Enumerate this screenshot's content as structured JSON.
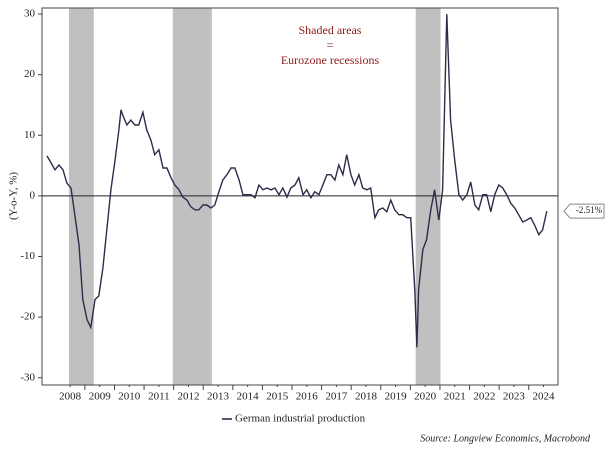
{
  "chart_data": {
    "type": "line",
    "y_label": "(Y-o-Y, %)",
    "annotation": [
      "Shaded areas",
      "=",
      "Eurozone recessions"
    ],
    "source": "Source: Longview Economics, Macrobond",
    "recessions": [
      [
        2008.46,
        2009.3
      ],
      [
        2011.97,
        2013.29
      ],
      [
        2020.18,
        2021.02
      ]
    ],
    "recession_color": "#c0c0c0",
    "xlim": [
      2007.55,
      2024.99
    ],
    "ylim": [
      -31.2,
      31
    ],
    "yticks": [
      -30,
      -20,
      -10,
      0,
      10,
      20,
      30
    ],
    "xticks": [
      {
        "value": 2008.5,
        "label": "2008"
      },
      {
        "value": 2009.5,
        "label": "2009"
      },
      {
        "value": 2010.5,
        "label": "2010"
      },
      {
        "value": 2011.5,
        "label": "2011"
      },
      {
        "value": 2012.5,
        "label": "2012"
      },
      {
        "value": 2013.5,
        "label": "2013"
      },
      {
        "value": 2014.5,
        "label": "2014"
      },
      {
        "value": 2015.5,
        "label": "2015"
      },
      {
        "value": 2016.5,
        "label": "2016"
      },
      {
        "value": 2017.5,
        "label": "2017"
      },
      {
        "value": 2018.5,
        "label": "2018"
      },
      {
        "value": 2019.5,
        "label": "2019"
      },
      {
        "value": 2020.5,
        "label": "2020"
      },
      {
        "value": 2021.5,
        "label": "2021"
      },
      {
        "value": 2022.5,
        "label": "2022"
      },
      {
        "value": 2023.5,
        "label": "2023"
      },
      {
        "value": 2024.5,
        "label": "2024"
      }
    ],
    "x": [
      2007.72,
      2007.85,
      2007.99,
      2008.12,
      2008.26,
      2008.39,
      2008.53,
      2008.66,
      2008.8,
      2008.93,
      2009.07,
      2009.2,
      2009.34,
      2009.47,
      2009.61,
      2009.74,
      2009.88,
      2010.01,
      2010.15,
      2010.22,
      2010.28,
      2010.42,
      2010.55,
      2010.69,
      2010.82,
      2010.96,
      2011.09,
      2011.23,
      2011.36,
      2011.5,
      2011.64,
      2011.77,
      2011.91,
      2012.04,
      2012.18,
      2012.31,
      2012.45,
      2012.58,
      2012.72,
      2012.85,
      2012.99,
      2013.12,
      2013.26,
      2013.39,
      2013.53,
      2013.66,
      2013.8,
      2013.94,
      2014.07,
      2014.21,
      2014.34,
      2014.48,
      2014.61,
      2014.75,
      2014.88,
      2015.02,
      2015.15,
      2015.29,
      2015.42,
      2015.56,
      2015.69,
      2015.83,
      2015.96,
      2016.1,
      2016.23,
      2016.37,
      2016.5,
      2016.64,
      2016.77,
      2016.91,
      2017.04,
      2017.18,
      2017.31,
      2017.45,
      2017.58,
      2017.72,
      2017.85,
      2017.99,
      2018.12,
      2018.26,
      2018.39,
      2018.53,
      2018.66,
      2018.8,
      2018.93,
      2019.07,
      2019.2,
      2019.34,
      2019.47,
      2019.61,
      2019.74,
      2019.88,
      2020.01,
      2020.15,
      2020.22,
      2020.28,
      2020.42,
      2020.55,
      2020.69,
      2020.82,
      2020.96,
      2021.09,
      2021.23,
      2021.36,
      2021.5,
      2021.64,
      2021.77,
      2021.91,
      2022.04,
      2022.18,
      2022.31,
      2022.45,
      2022.58,
      2022.72,
      2022.85,
      2022.99,
      2023.12,
      2023.26,
      2023.39,
      2023.53,
      2023.66,
      2023.8,
      2023.93,
      2024.07,
      2024.2,
      2024.34,
      2024.47,
      2024.61
    ],
    "series": [
      {
        "name": "German industrial production",
        "color": "#2b2d4a",
        "values": [
          6.6,
          5.5,
          4.3,
          5.1,
          4.3,
          2.1,
          1.3,
          -3.1,
          -8.1,
          -17.1,
          -20.4,
          -21.7,
          -17.1,
          -16.5,
          -11.9,
          -5.6,
          1,
          5.6,
          10.9,
          14.2,
          13.3,
          11.7,
          12.5,
          11.7,
          11.7,
          13.8,
          10.9,
          9.2,
          6.8,
          7.6,
          4.6,
          4.6,
          3,
          1.8,
          1,
          -0.2,
          -0.7,
          -1.8,
          -2.3,
          -2.3,
          -1.5,
          -1.5,
          -2,
          -1.5,
          0.7,
          2.6,
          3.5,
          4.6,
          4.6,
          2.6,
          0.2,
          0.2,
          0.2,
          -0.3,
          1.8,
          1,
          1.3,
          1,
          1.3,
          0.2,
          1.3,
          -0.2,
          1.3,
          1.8,
          3,
          0.2,
          1,
          -0.3,
          0.7,
          0.2,
          1.8,
          3.5,
          3.5,
          2.6,
          5.1,
          3.5,
          6.8,
          3.5,
          1.8,
          3.5,
          1.3,
          1,
          1.3,
          -3.6,
          -2.3,
          -2,
          -2.6,
          -0.7,
          -2.3,
          -3.1,
          -3.1,
          -3.6,
          -3.6,
          -15.5,
          -25,
          -15.5,
          -8.9,
          -7.2,
          -2.3,
          1,
          -4,
          1,
          30,
          12.5,
          5.9,
          0.2,
          -0.7,
          0.2,
          2.3,
          -1.5,
          -2.3,
          0.2,
          0.2,
          -2.6,
          0.2,
          1.8,
          1.3,
          0.2,
          -1.2,
          -2,
          -3.1,
          -4.3,
          -4,
          -3.6,
          -4.8,
          -6.4,
          -5.6,
          -2.51
        ],
        "last_value_label": "-2.51%"
      }
    ]
  }
}
